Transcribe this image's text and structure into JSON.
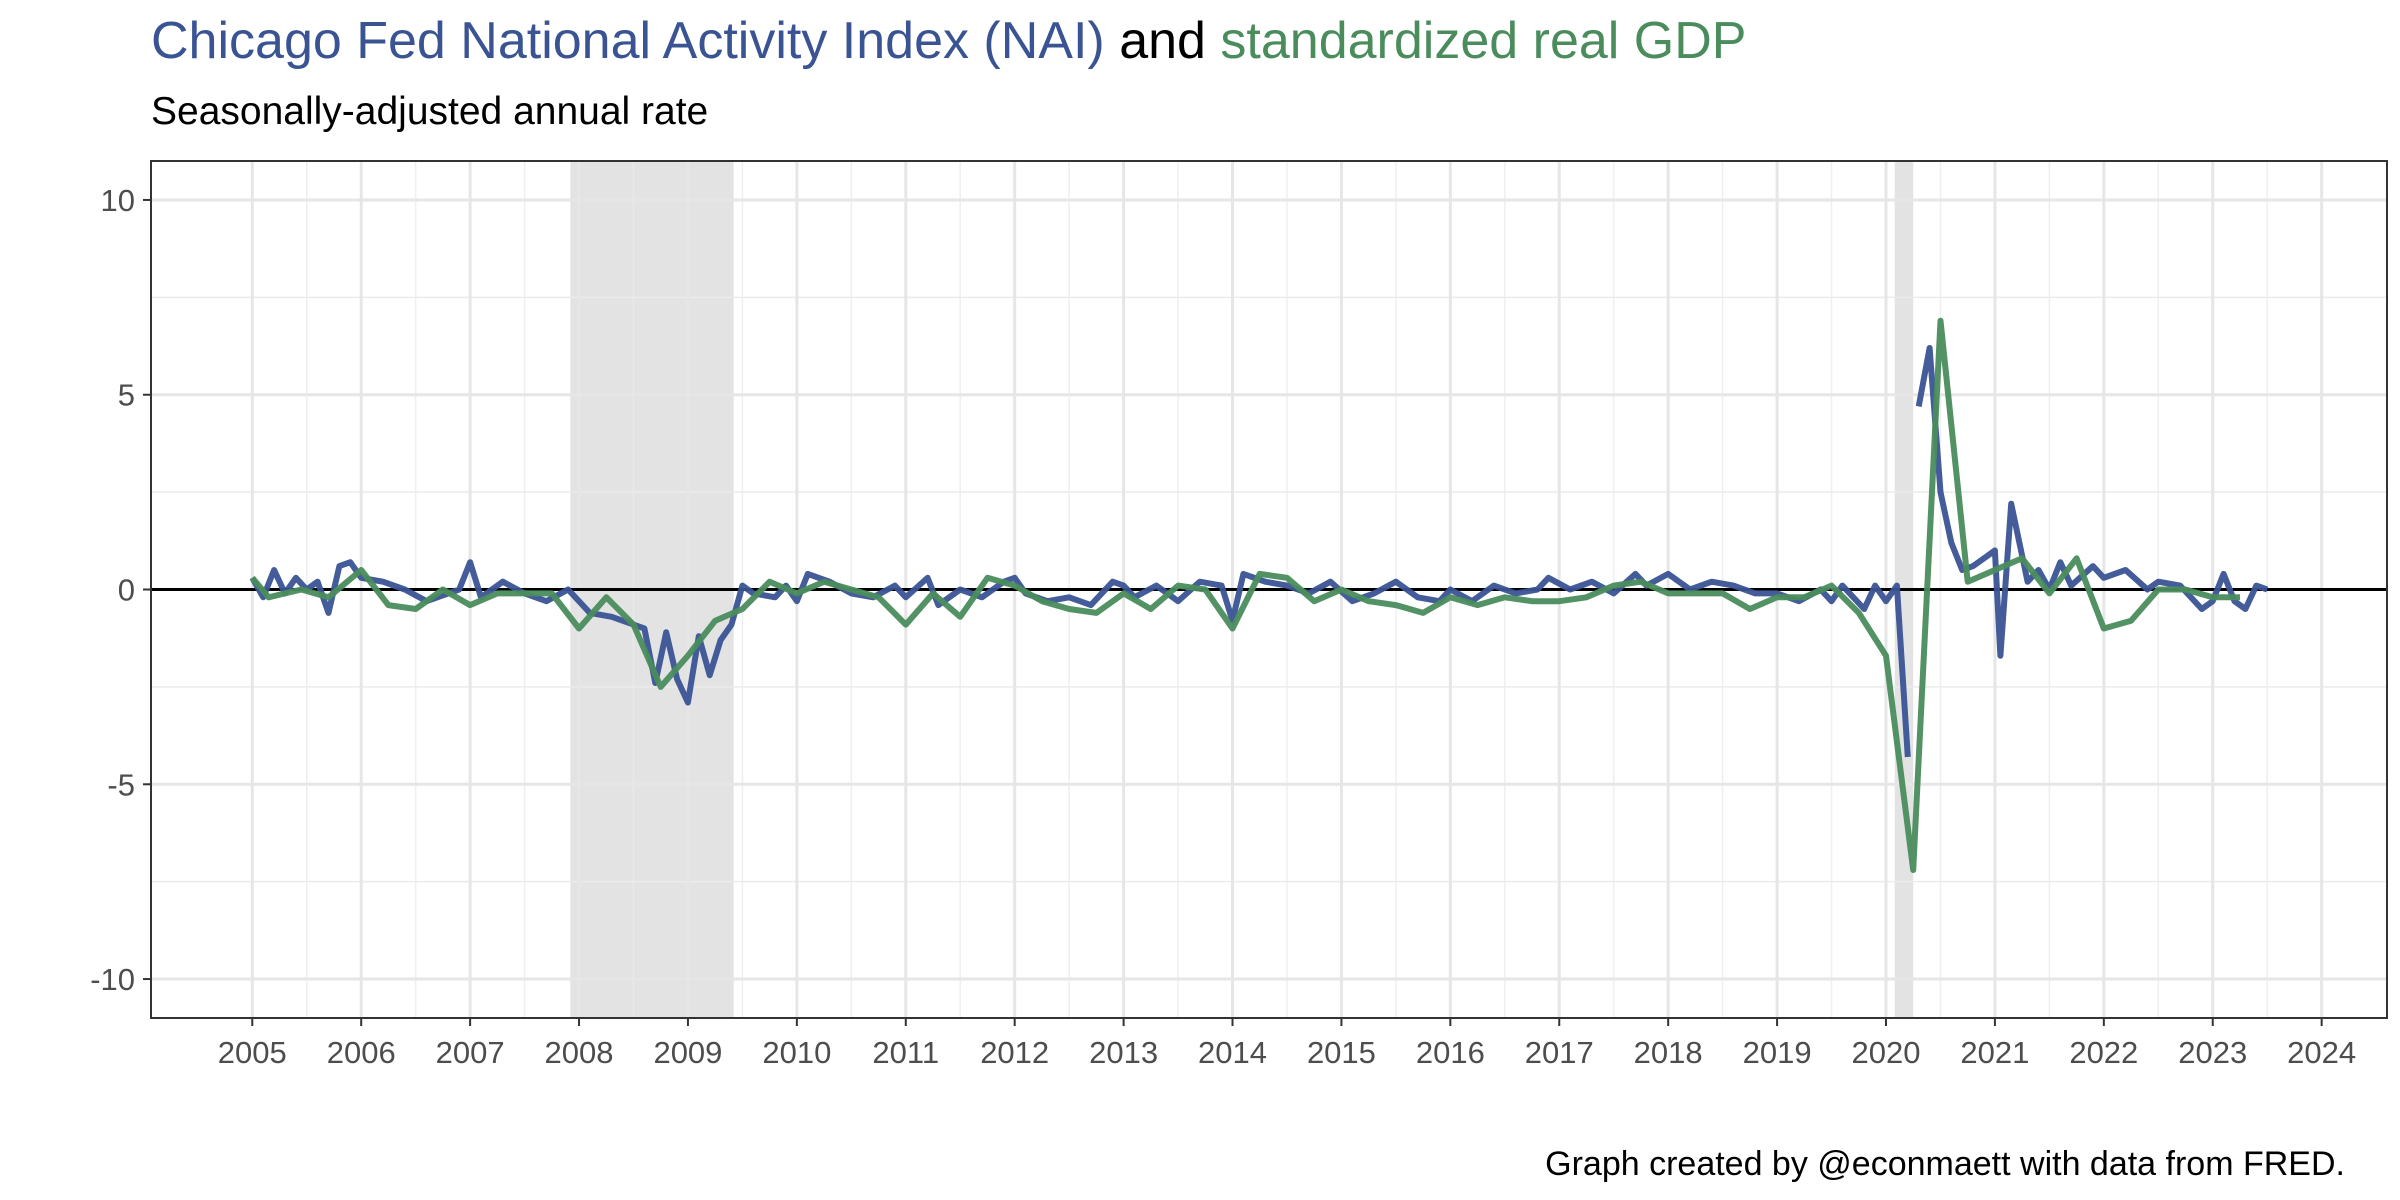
{
  "chart_data": {
    "type": "line",
    "title_connector": "and",
    "subtitle": "Seasonally-adjusted annual rate",
    "caption": "Graph created by @econmaett with data from FRED.",
    "xlim": [
      2004.07,
      2024.6
    ],
    "xticks": [
      2005,
      2006,
      2007,
      2008,
      2009,
      2010,
      2011,
      2012,
      2013,
      2014,
      2015,
      2016,
      2017,
      2018,
      2019,
      2020,
      2021,
      2022,
      2023,
      2024
    ],
    "ylim": [
      -11,
      11
    ],
    "yticks": [
      -10,
      -5,
      0,
      5,
      10
    ],
    "grid": true,
    "minor_grid": true,
    "hline": 0,
    "recessions": [
      {
        "start": 2007.92,
        "end": 2009.42
      },
      {
        "start": 2020.08,
        "end": 2020.25
      }
    ],
    "series": [
      {
        "name": "Chicago Fed National Activity Index (NAI)",
        "color": "#3a5393",
        "x": [
          2005.0,
          2005.1,
          2005.2,
          2005.3,
          2005.4,
          2005.5,
          2005.6,
          2005.7,
          2005.8,
          2005.9,
          2006.0,
          2006.2,
          2006.4,
          2006.6,
          2006.8,
          2006.9,
          2007.0,
          2007.1,
          2007.3,
          2007.5,
          2007.7,
          2007.9,
          2008.1,
          2008.3,
          2008.5,
          2008.6,
          2008.7,
          2008.8,
          2008.9,
          2009.0,
          2009.1,
          2009.2,
          2009.3,
          2009.4,
          2009.5,
          2009.6,
          2009.8,
          2009.9,
          2010.0,
          2010.1,
          2010.3,
          2010.5,
          2010.7,
          2010.9,
          2011.0,
          2011.2,
          2011.3,
          2011.5,
          2011.7,
          2011.9,
          2012.0,
          2012.1,
          2012.3,
          2012.5,
          2012.7,
          2012.9,
          2013.0,
          2013.1,
          2013.3,
          2013.5,
          2013.7,
          2013.9,
          2014.0,
          2014.1,
          2014.3,
          2014.5,
          2014.7,
          2014.9,
          2015.1,
          2015.3,
          2015.5,
          2015.7,
          2015.9,
          2016.0,
          2016.2,
          2016.4,
          2016.6,
          2016.8,
          2016.9,
          2017.1,
          2017.3,
          2017.5,
          2017.7,
          2017.8,
          2018.0,
          2018.2,
          2018.4,
          2018.6,
          2018.8,
          2019.0,
          2019.2,
          2019.4,
          2019.5,
          2019.6,
          2019.8,
          2019.9,
          2020.0,
          2020.1,
          2020.2,
          2020.25,
          2020.3,
          2020.4,
          2020.5,
          2020.6,
          2020.7,
          2020.8,
          2020.9,
          2021.0,
          2021.05,
          2021.15,
          2021.3,
          2021.4,
          2021.5,
          2021.6,
          2021.7,
          2021.9,
          2022.0,
          2022.2,
          2022.4,
          2022.5,
          2022.7,
          2022.9,
          2023.0,
          2023.1,
          2023.2,
          2023.3,
          2023.4,
          2023.5
        ],
        "values": [
          0.3,
          -0.2,
          0.5,
          -0.1,
          0.3,
          0.0,
          0.2,
          -0.6,
          0.6,
          0.7,
          0.3,
          0.2,
          0.0,
          -0.3,
          -0.1,
          0.0,
          0.7,
          -0.2,
          0.2,
          -0.1,
          -0.3,
          0.0,
          -0.6,
          -0.7,
          -0.9,
          -1.0,
          -2.4,
          -1.1,
          -2.3,
          -2.9,
          -1.2,
          -2.2,
          -1.3,
          -0.9,
          0.1,
          -0.1,
          -0.2,
          0.1,
          -0.3,
          0.4,
          0.2,
          -0.1,
          -0.2,
          0.1,
          -0.2,
          0.3,
          -0.4,
          0.0,
          -0.2,
          0.2,
          0.3,
          -0.1,
          -0.3,
          -0.2,
          -0.4,
          0.2,
          0.1,
          -0.2,
          0.1,
          -0.3,
          0.2,
          0.1,
          -0.8,
          0.4,
          0.2,
          0.1,
          -0.1,
          0.2,
          -0.3,
          -0.1,
          0.2,
          -0.2,
          -0.3,
          0.0,
          -0.3,
          0.1,
          -0.1,
          0.0,
          0.3,
          0.0,
          0.2,
          -0.1,
          0.4,
          0.1,
          0.4,
          0.0,
          0.2,
          0.1,
          -0.1,
          -0.1,
          -0.3,
          0.0,
          -0.3,
          0.1,
          -0.5,
          0.1,
          -0.3,
          0.1,
          -4.3,
          null,
          4.7,
          6.2,
          2.5,
          1.2,
          0.5,
          0.6,
          0.8,
          1.0,
          -1.7,
          2.2,
          0.2,
          0.5,
          0.0,
          0.7,
          0.1,
          0.6,
          0.3,
          0.5,
          0.0,
          0.2,
          0.1,
          -0.5,
          -0.3,
          0.4,
          -0.3,
          -0.5,
          0.1,
          0.0
        ]
      },
      {
        "name": "standardized real GDP",
        "color": "#4a8c5c",
        "x": [
          2005.0,
          2005.15,
          2005.45,
          2005.7,
          2006.0,
          2006.25,
          2006.5,
          2006.75,
          2007.0,
          2007.25,
          2007.5,
          2007.75,
          2008.0,
          2008.25,
          2008.5,
          2008.75,
          2009.0,
          2009.25,
          2009.5,
          2009.75,
          2010.0,
          2010.25,
          2010.5,
          2010.75,
          2011.0,
          2011.25,
          2011.5,
          2011.75,
          2012.0,
          2012.25,
          2012.5,
          2012.75,
          2013.0,
          2013.25,
          2013.5,
          2013.75,
          2014.0,
          2014.25,
          2014.5,
          2014.75,
          2015.0,
          2015.25,
          2015.5,
          2015.75,
          2016.0,
          2016.25,
          2016.5,
          2016.75,
          2017.0,
          2017.25,
          2017.5,
          2017.75,
          2018.0,
          2018.25,
          2018.5,
          2018.75,
          2019.0,
          2019.25,
          2019.5,
          2019.75,
          2020.0,
          2020.25,
          2020.5,
          2020.75,
          2021.0,
          2021.25,
          2021.5,
          2021.75,
          2022.0,
          2022.25,
          2022.5,
          2022.75,
          2023.0,
          2023.25
        ],
        "values": [
          0.3,
          -0.2,
          0.0,
          -0.2,
          0.5,
          -0.4,
          -0.5,
          0.0,
          -0.4,
          -0.1,
          -0.1,
          -0.1,
          -1.0,
          -0.2,
          -0.9,
          -2.5,
          -1.7,
          -0.8,
          -0.5,
          0.2,
          -0.1,
          0.2,
          0.0,
          -0.2,
          -0.9,
          -0.1,
          -0.7,
          0.3,
          0.1,
          -0.3,
          -0.5,
          -0.6,
          -0.1,
          -0.5,
          0.1,
          0.0,
          -1.0,
          0.4,
          0.3,
          -0.3,
          0.0,
          -0.3,
          -0.4,
          -0.6,
          -0.2,
          -0.4,
          -0.2,
          -0.3,
          -0.3,
          -0.2,
          0.1,
          0.2,
          -0.1,
          -0.1,
          -0.1,
          -0.5,
          -0.2,
          -0.2,
          0.1,
          -0.6,
          -1.7,
          -7.2,
          6.9,
          0.2,
          0.5,
          0.8,
          -0.1,
          0.8,
          -1.0,
          -0.8,
          0.0,
          0.0,
          -0.2,
          -0.2
        ]
      }
    ]
  }
}
